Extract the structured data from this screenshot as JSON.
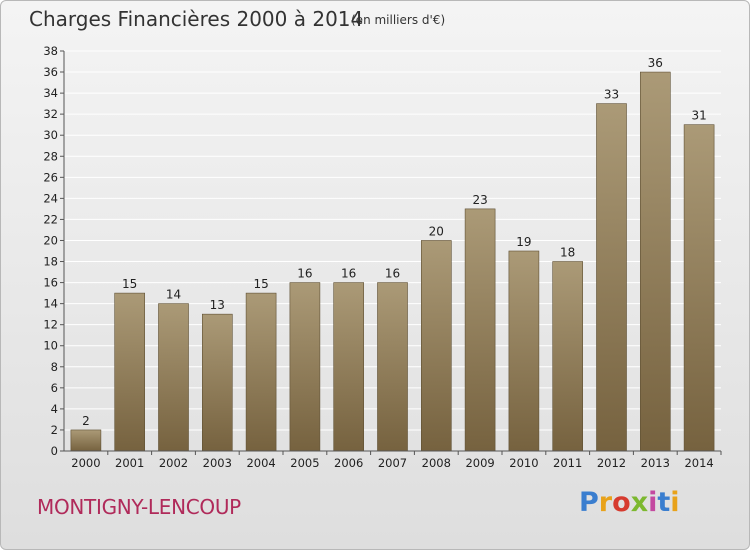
{
  "header": {
    "title": "Charges Financières 2000 à 2014",
    "subtitle": "(en milliers d'€)"
  },
  "footer": {
    "commune": "MONTIGNY-LENCOUP",
    "brand": "Proxiti",
    "brand_colors": [
      "#3a7ecf",
      "#e8a21a",
      "#d63b2f",
      "#7cb82f",
      "#c44aa0",
      "#3a7ecf",
      "#e8a21a"
    ]
  },
  "colors": {
    "bar_top": "#ab9a77",
    "bar_bottom": "#76623f",
    "grid": "#ffffff",
    "commune_text": "#b02a5a"
  },
  "chart_data": {
    "type": "bar",
    "categories": [
      "2000",
      "2001",
      "2002",
      "2003",
      "2004",
      "2005",
      "2006",
      "2007",
      "2008",
      "2009",
      "2010",
      "2011",
      "2012",
      "2013",
      "2014"
    ],
    "values": [
      2,
      15,
      14,
      13,
      15,
      16,
      16,
      16,
      20,
      23,
      19,
      18,
      33,
      36,
      31
    ],
    "title": "Charges Financières 2000 à 2014",
    "subtitle": "(en milliers d'€)",
    "xlabel": "",
    "ylabel": "",
    "ylim": [
      0,
      38
    ],
    "yticks": [
      0,
      2,
      4,
      6,
      8,
      10,
      12,
      14,
      16,
      18,
      20,
      22,
      24,
      26,
      28,
      30,
      32,
      34,
      36,
      38
    ],
    "grid": true,
    "data_labels": true
  }
}
